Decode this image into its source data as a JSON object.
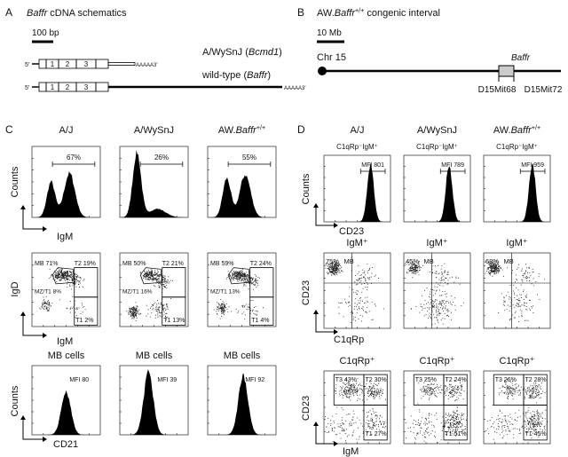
{
  "panel_a": {
    "letter": "A",
    "title": {
      "italic": "Baffr",
      "rest": " cDNA schematics"
    },
    "scale": "100 bp",
    "constructs": [
      {
        "five": "5'",
        "exons": [
          "1",
          "2",
          "3"
        ],
        "tail": "AAAAA3'",
        "label": {
          "pre": "A/WySnJ (",
          "italic": "Bcmd1",
          "post": ")"
        }
      },
      {
        "five": "5'",
        "exons": [
          "1",
          "2",
          "3"
        ],
        "tail": "AAAAA3'",
        "label": {
          "pre": "wild-type (",
          "italic": "Baffr",
          "post": ")"
        }
      }
    ]
  },
  "panel_b": {
    "letter": "B",
    "title": {
      "pre": "AW.",
      "italic": "Baffr",
      "sup": "+/+",
      "rest": " congenic interval"
    },
    "scale": "10 Mb",
    "chromosome": "Chr 15",
    "gene": "Baffr",
    "markers": [
      "D15Mit68",
      "D15Mit72"
    ]
  },
  "panel_c": {
    "letter": "C",
    "strains": [
      "A/J",
      "A/WySnJ",
      {
        "pre": "AW.",
        "italic": "Baffr",
        "sup": "+/+"
      }
    ],
    "row1": {
      "y_label": "Counts",
      "x_label": "IgM",
      "gates": [
        "67%",
        "26%",
        "55%"
      ]
    },
    "row2": {
      "y_label": "IgD",
      "x_label": "IgM",
      "plots": [
        {
          "mb": "MB 71%",
          "t2": "T2 19%",
          "mz": "MZ/T1 8%",
          "t1": "T1 2%"
        },
        {
          "mb": "MB 50%",
          "t2": "T2 21%",
          "mz": "MZ/T1 16%",
          "t1": "T1 13%"
        },
        {
          "mb": "MB 59%",
          "t2": "T2 24%",
          "mz": "MZ/T1 13%",
          "t1": "T1 4%"
        }
      ]
    },
    "row3": {
      "titles": [
        "MB cells",
        "MB cells",
        "MB cells"
      ],
      "mfi": [
        "MFI 80",
        "MFI 39",
        "MFI 92"
      ],
      "y_label": "Counts",
      "x_label": "CD21"
    }
  },
  "panel_d": {
    "letter": "D",
    "strains": [
      "A/J",
      "A/WySnJ",
      {
        "pre": "AW.",
        "italic": "Baffr",
        "sup": "+/+"
      }
    ],
    "row1": {
      "subtitles": [
        "C1qRp⁻IgM⁺",
        "C1qRp⁻IgM⁺",
        "C1qRp⁻IgM⁺"
      ],
      "mfi": [
        "MFI 801",
        "MFI 789",
        "MFI 959"
      ],
      "y_label": "Counts",
      "x_label": "CD23"
    },
    "row2": {
      "titles": [
        "IgM⁺",
        "IgM⁺",
        "IgM⁺"
      ],
      "plots": [
        {
          "pct": "75%",
          "gate": "MB"
        },
        {
          "pct": "45%",
          "gate": "MB"
        },
        {
          "pct": "68%",
          "gate": "MB"
        }
      ],
      "y_label": "CD23",
      "x_label": "C1qRp"
    },
    "row3": {
      "titles": [
        "C1qRp⁺",
        "C1qRp⁺",
        "C1qRp⁺"
      ],
      "plots": [
        {
          "t3": "T3 43%",
          "t2": "T2 30%",
          "t1": "T1 27%"
        },
        {
          "t3": "T3 25%",
          "t2": "T2 24%",
          "t1": "T1 51%"
        },
        {
          "t3": "T3 26%",
          "t2": "T2 28%",
          "t1": "T1 45%"
        }
      ],
      "y_label": "CD23",
      "x_label": "IgM"
    }
  }
}
